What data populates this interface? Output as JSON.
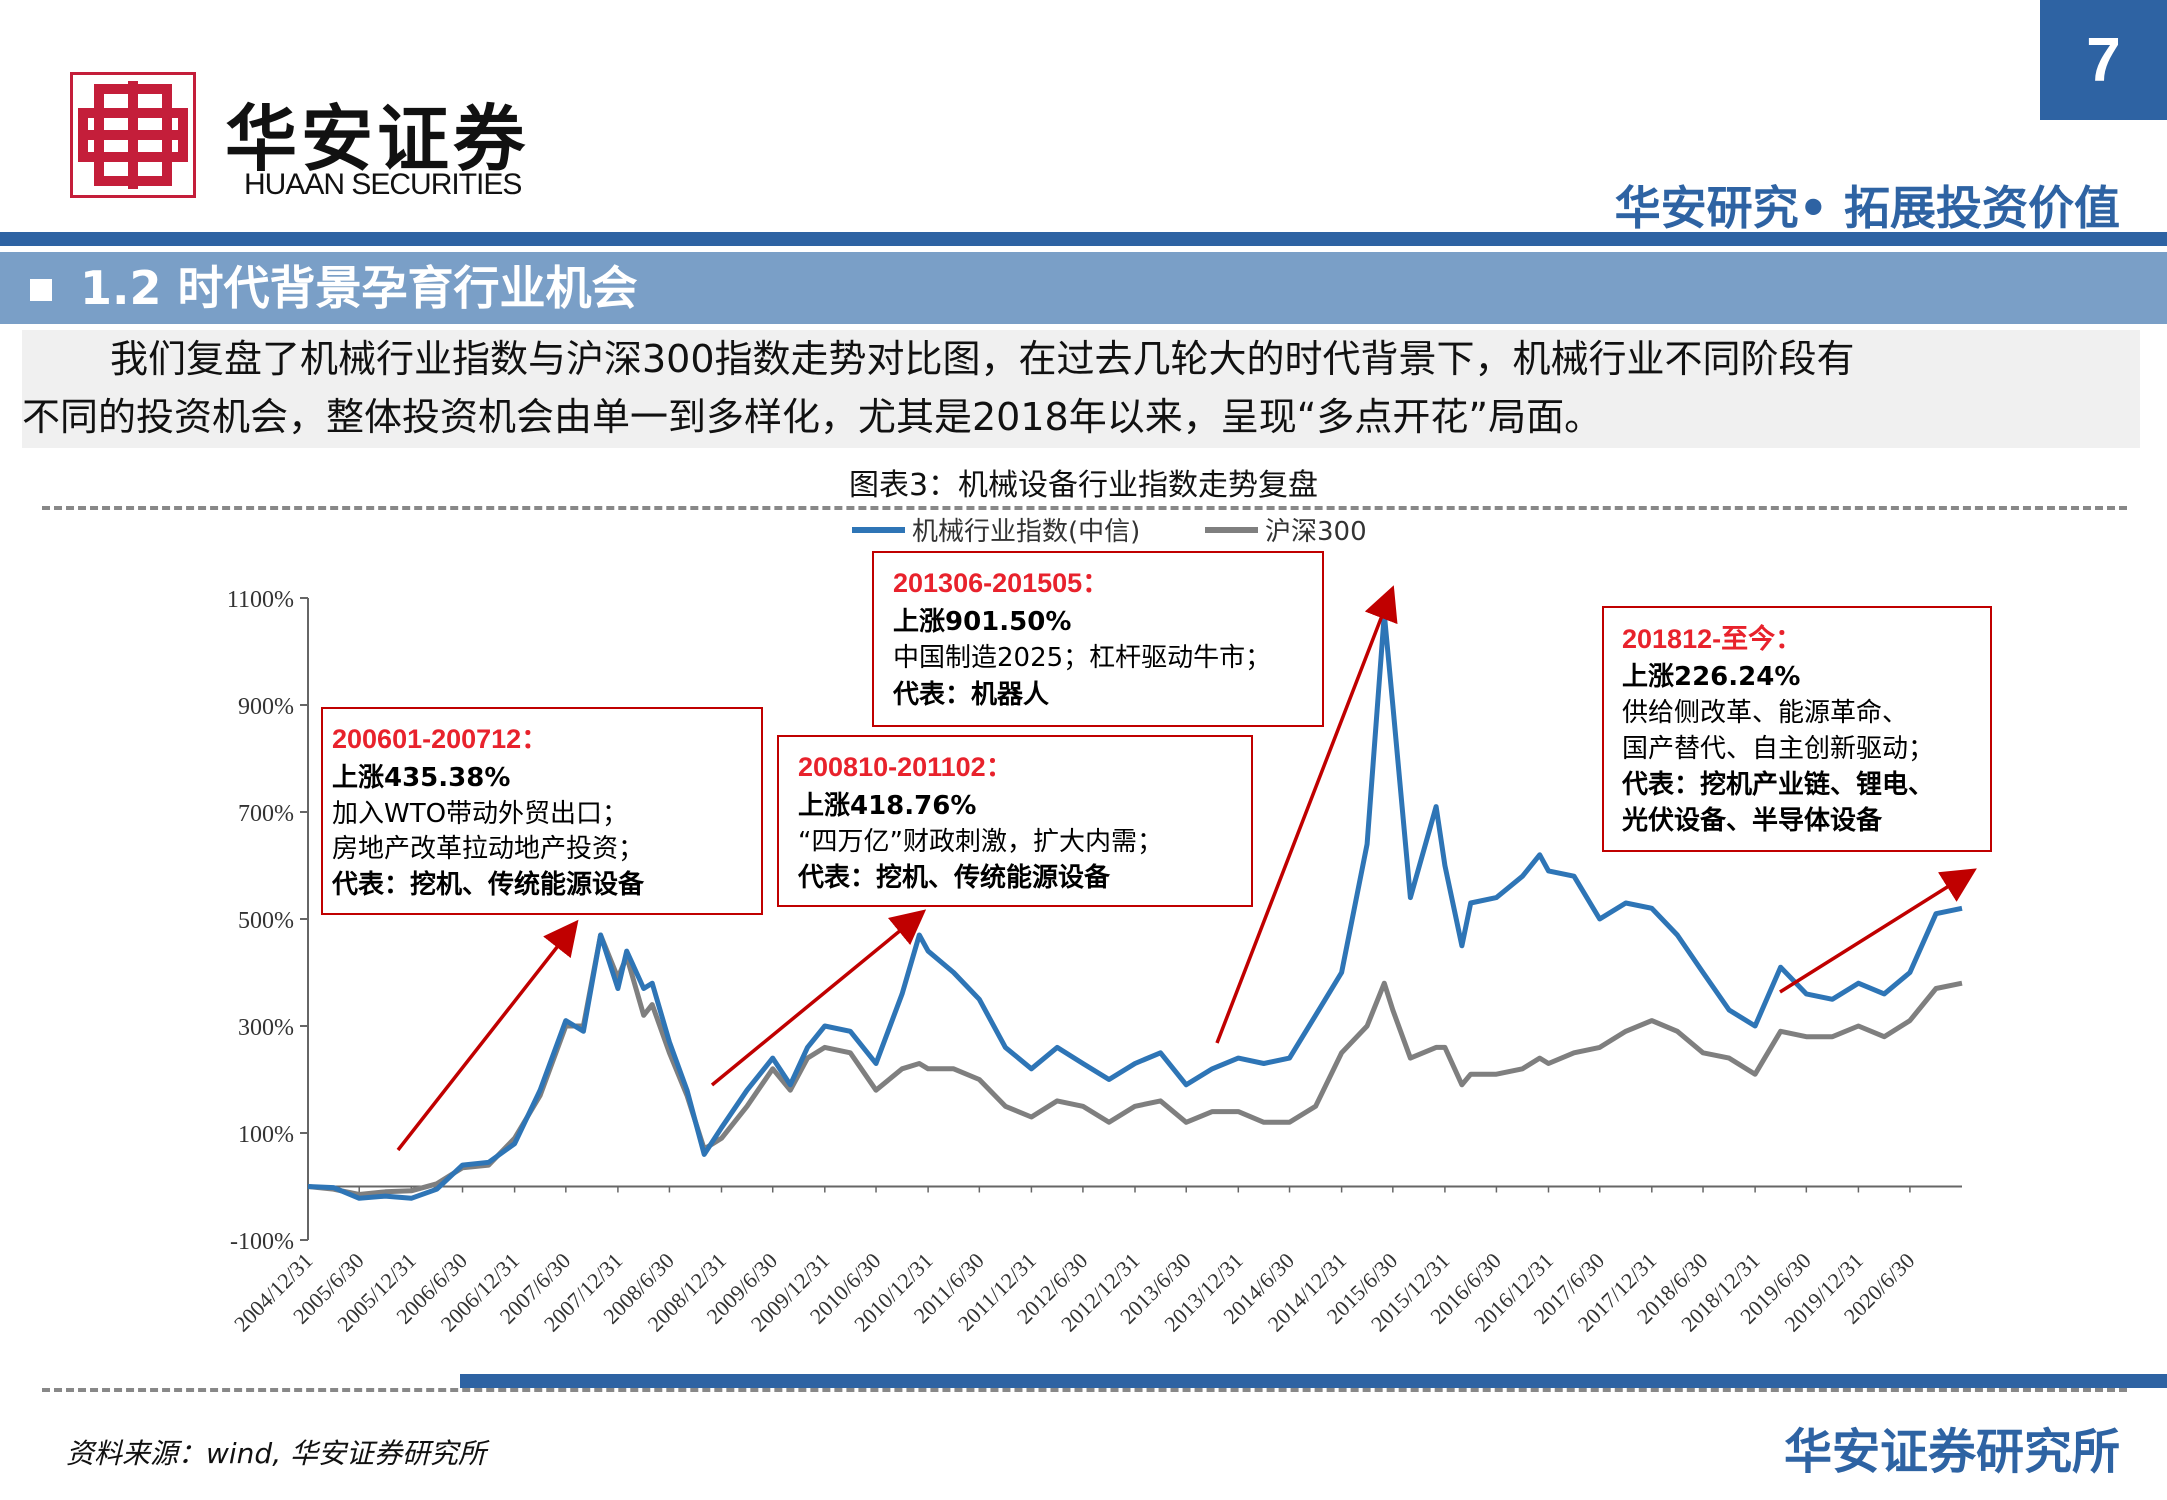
{
  "header": {
    "brand_cn": "华安证券",
    "brand_en": "HUAAN SECURITIES",
    "page_number": "7",
    "slogan": "华安研究• 拓展投资价值"
  },
  "section": {
    "title": "1.2 时代背景孕育行业机会"
  },
  "intro": {
    "line1": "我们复盘了机械行业指数与沪深300指数走势对比图，在过去几轮大的时代背景下，机械行业不同阶段有",
    "line2": "不同的投资机会，整体投资机会由单一到多样化，尤其是2018年以来，呈现“多点开花”局面。"
  },
  "figure_title": "图表3：机械设备行业指数走势复盘",
  "footer": {
    "source": "资料来源：wind, 华安证券研究所",
    "brand": "华安证券研究所"
  },
  "colors": {
    "brand_blue": "#2e63a3",
    "section_bar": "#7a9fc7",
    "machinery_series": "#2e75b6",
    "csi300_series": "#7f7f7f",
    "arrow": "#c00000",
    "annotation_title": "#e8222c"
  },
  "chart_data": {
    "type": "line",
    "ylim": [
      -100,
      1100
    ],
    "yticks": [
      "-100%",
      "100%",
      "300%",
      "500%",
      "700%",
      "900%",
      "1100%"
    ],
    "ytick_values": [
      -100,
      100,
      300,
      500,
      700,
      900,
      1100
    ],
    "x_range": [
      "2004-12-31",
      "2020-12-31"
    ],
    "xtick_labels": [
      "2004/12/31",
      "2005/6/30",
      "2005/12/31",
      "2006/6/30",
      "2006/12/31",
      "2007/6/30",
      "2007/12/31",
      "2008/6/30",
      "2008/12/31",
      "2009/6/30",
      "2009/12/31",
      "2010/6/30",
      "2010/12/31",
      "2011/6/30",
      "2011/12/31",
      "2012/6/30",
      "2012/12/31",
      "2013/6/30",
      "2013/12/31",
      "2014/6/30",
      "2014/12/31",
      "2015/6/30",
      "2015/12/31",
      "2016/6/30",
      "2016/12/31",
      "2017/6/30",
      "2017/12/31",
      "2018/6/30",
      "2018/12/31",
      "2019/6/30",
      "2019/12/31",
      "2020/6/30"
    ],
    "legend": [
      "机械行业指数(中信)",
      "沪深300"
    ],
    "legend_position": "top-center",
    "series": [
      {
        "name": "机械行业指数(中信)",
        "points": [
          [
            "2004-12-31",
            0
          ],
          [
            "2005-03-31",
            -2
          ],
          [
            "2005-06-30",
            -22
          ],
          [
            "2005-09-30",
            -18
          ],
          [
            "2005-12-31",
            -22
          ],
          [
            "2006-03-31",
            -5
          ],
          [
            "2006-06-30",
            40
          ],
          [
            "2006-09-30",
            45
          ],
          [
            "2006-12-31",
            80
          ],
          [
            "2007-03-31",
            180
          ],
          [
            "2007-06-30",
            310
          ],
          [
            "2007-08-31",
            290
          ],
          [
            "2007-10-31",
            470
          ],
          [
            "2007-12-31",
            370
          ],
          [
            "2008-01-31",
            440
          ],
          [
            "2008-03-31",
            370
          ],
          [
            "2008-04-30",
            380
          ],
          [
            "2008-06-30",
            270
          ],
          [
            "2008-08-31",
            180
          ],
          [
            "2008-10-31",
            60
          ],
          [
            "2008-12-31",
            110
          ],
          [
            "2009-03-31",
            180
          ],
          [
            "2009-06-30",
            240
          ],
          [
            "2009-08-31",
            190
          ],
          [
            "2009-10-31",
            260
          ],
          [
            "2009-12-31",
            300
          ],
          [
            "2010-03-31",
            290
          ],
          [
            "2010-06-30",
            230
          ],
          [
            "2010-09-30",
            360
          ],
          [
            "2010-11-30",
            470
          ],
          [
            "2010-12-31",
            440
          ],
          [
            "2011-03-31",
            400
          ],
          [
            "2011-06-30",
            350
          ],
          [
            "2011-09-30",
            260
          ],
          [
            "2011-12-31",
            220
          ],
          [
            "2012-03-31",
            260
          ],
          [
            "2012-06-30",
            230
          ],
          [
            "2012-09-30",
            200
          ],
          [
            "2012-12-31",
            230
          ],
          [
            "2013-03-31",
            250
          ],
          [
            "2013-06-30",
            190
          ],
          [
            "2013-09-30",
            220
          ],
          [
            "2013-12-31",
            240
          ],
          [
            "2014-03-31",
            230
          ],
          [
            "2014-06-30",
            240
          ],
          [
            "2014-09-30",
            320
          ],
          [
            "2014-12-31",
            400
          ],
          [
            "2015-03-31",
            640
          ],
          [
            "2015-05-31",
            1070
          ],
          [
            "2015-06-30",
            900
          ],
          [
            "2015-08-31",
            540
          ],
          [
            "2015-11-30",
            710
          ],
          [
            "2015-12-31",
            600
          ],
          [
            "2016-02-29",
            450
          ],
          [
            "2016-03-31",
            530
          ],
          [
            "2016-06-30",
            540
          ],
          [
            "2016-09-30",
            580
          ],
          [
            "2016-11-30",
            620
          ],
          [
            "2016-12-31",
            590
          ],
          [
            "2017-03-31",
            580
          ],
          [
            "2017-06-30",
            500
          ],
          [
            "2017-09-30",
            530
          ],
          [
            "2017-12-31",
            520
          ],
          [
            "2018-03-31",
            470
          ],
          [
            "2018-06-30",
            400
          ],
          [
            "2018-09-30",
            330
          ],
          [
            "2018-12-31",
            300
          ],
          [
            "2019-03-31",
            410
          ],
          [
            "2019-06-30",
            360
          ],
          [
            "2019-09-30",
            350
          ],
          [
            "2019-12-31",
            380
          ],
          [
            "2020-03-31",
            360
          ],
          [
            "2020-06-30",
            400
          ],
          [
            "2020-09-30",
            510
          ],
          [
            "2020-12-31",
            520
          ]
        ]
      },
      {
        "name": "沪深300",
        "points": [
          [
            "2004-12-31",
            0
          ],
          [
            "2005-03-31",
            -5
          ],
          [
            "2005-06-30",
            -15
          ],
          [
            "2005-09-30",
            -10
          ],
          [
            "2005-12-31",
            -8
          ],
          [
            "2006-03-31",
            5
          ],
          [
            "2006-06-30",
            35
          ],
          [
            "2006-09-30",
            40
          ],
          [
            "2006-12-31",
            90
          ],
          [
            "2007-03-31",
            170
          ],
          [
            "2007-06-30",
            300
          ],
          [
            "2007-08-31",
            300
          ],
          [
            "2007-10-31",
            470
          ],
          [
            "2007-12-31",
            390
          ],
          [
            "2008-01-31",
            430
          ],
          [
            "2008-03-31",
            320
          ],
          [
            "2008-04-30",
            340
          ],
          [
            "2008-06-30",
            250
          ],
          [
            "2008-08-31",
            170
          ],
          [
            "2008-10-31",
            70
          ],
          [
            "2008-12-31",
            90
          ],
          [
            "2009-03-31",
            150
          ],
          [
            "2009-06-30",
            220
          ],
          [
            "2009-08-31",
            180
          ],
          [
            "2009-10-31",
            240
          ],
          [
            "2009-12-31",
            260
          ],
          [
            "2010-03-31",
            250
          ],
          [
            "2010-06-30",
            180
          ],
          [
            "2010-09-30",
            220
          ],
          [
            "2010-11-30",
            230
          ],
          [
            "2010-12-31",
            220
          ],
          [
            "2011-03-31",
            220
          ],
          [
            "2011-06-30",
            200
          ],
          [
            "2011-09-30",
            150
          ],
          [
            "2011-12-31",
            130
          ],
          [
            "2012-03-31",
            160
          ],
          [
            "2012-06-30",
            150
          ],
          [
            "2012-09-30",
            120
          ],
          [
            "2012-12-31",
            150
          ],
          [
            "2013-03-31",
            160
          ],
          [
            "2013-06-30",
            120
          ],
          [
            "2013-09-30",
            140
          ],
          [
            "2013-12-31",
            140
          ],
          [
            "2014-03-31",
            120
          ],
          [
            "2014-06-30",
            120
          ],
          [
            "2014-09-30",
            150
          ],
          [
            "2014-12-31",
            250
          ],
          [
            "2015-03-31",
            300
          ],
          [
            "2015-05-31",
            380
          ],
          [
            "2015-06-30",
            330
          ],
          [
            "2015-08-31",
            240
          ],
          [
            "2015-11-30",
            260
          ],
          [
            "2015-12-31",
            260
          ],
          [
            "2016-02-29",
            190
          ],
          [
            "2016-03-31",
            210
          ],
          [
            "2016-06-30",
            210
          ],
          [
            "2016-09-30",
            220
          ],
          [
            "2016-11-30",
            240
          ],
          [
            "2016-12-31",
            230
          ],
          [
            "2017-03-31",
            250
          ],
          [
            "2017-06-30",
            260
          ],
          [
            "2017-09-30",
            290
          ],
          [
            "2017-12-31",
            310
          ],
          [
            "2018-03-31",
            290
          ],
          [
            "2018-06-30",
            250
          ],
          [
            "2018-09-30",
            240
          ],
          [
            "2018-12-31",
            210
          ],
          [
            "2019-03-31",
            290
          ],
          [
            "2019-06-30",
            280
          ],
          [
            "2019-09-30",
            280
          ],
          [
            "2019-12-31",
            300
          ],
          [
            "2020-03-31",
            280
          ],
          [
            "2020-06-30",
            310
          ],
          [
            "2020-09-30",
            370
          ],
          [
            "2020-12-31",
            380
          ]
        ]
      }
    ],
    "annotations": [
      {
        "title": "200601-200712：",
        "rise": "上涨435.38%",
        "lines": [
          "加入WTO带动外贸出口；",
          "房地产改革拉动地产投资；"
        ],
        "representative": "代表：挖机、传统能源设备"
      },
      {
        "title": "200810-201102：",
        "rise": "上涨418.76%",
        "lines": [
          "“四万亿”财政刺激，扩大内需；"
        ],
        "representative": "代表：挖机、传统能源设备"
      },
      {
        "title": "201306-201505：",
        "rise": "上涨901.50%",
        "lines": [
          "中国制造2025；杠杆驱动牛市；"
        ],
        "representative": "代表：机器人"
      },
      {
        "title": "201812-至今：",
        "rise": "上涨226.24%",
        "lines": [
          "供给侧改革、能源革命、",
          "国产替代、自主创新驱动；"
        ],
        "representative": "代表：挖机产业链、锂电、",
        "representative2": "光伏设备、半导体设备"
      }
    ]
  }
}
